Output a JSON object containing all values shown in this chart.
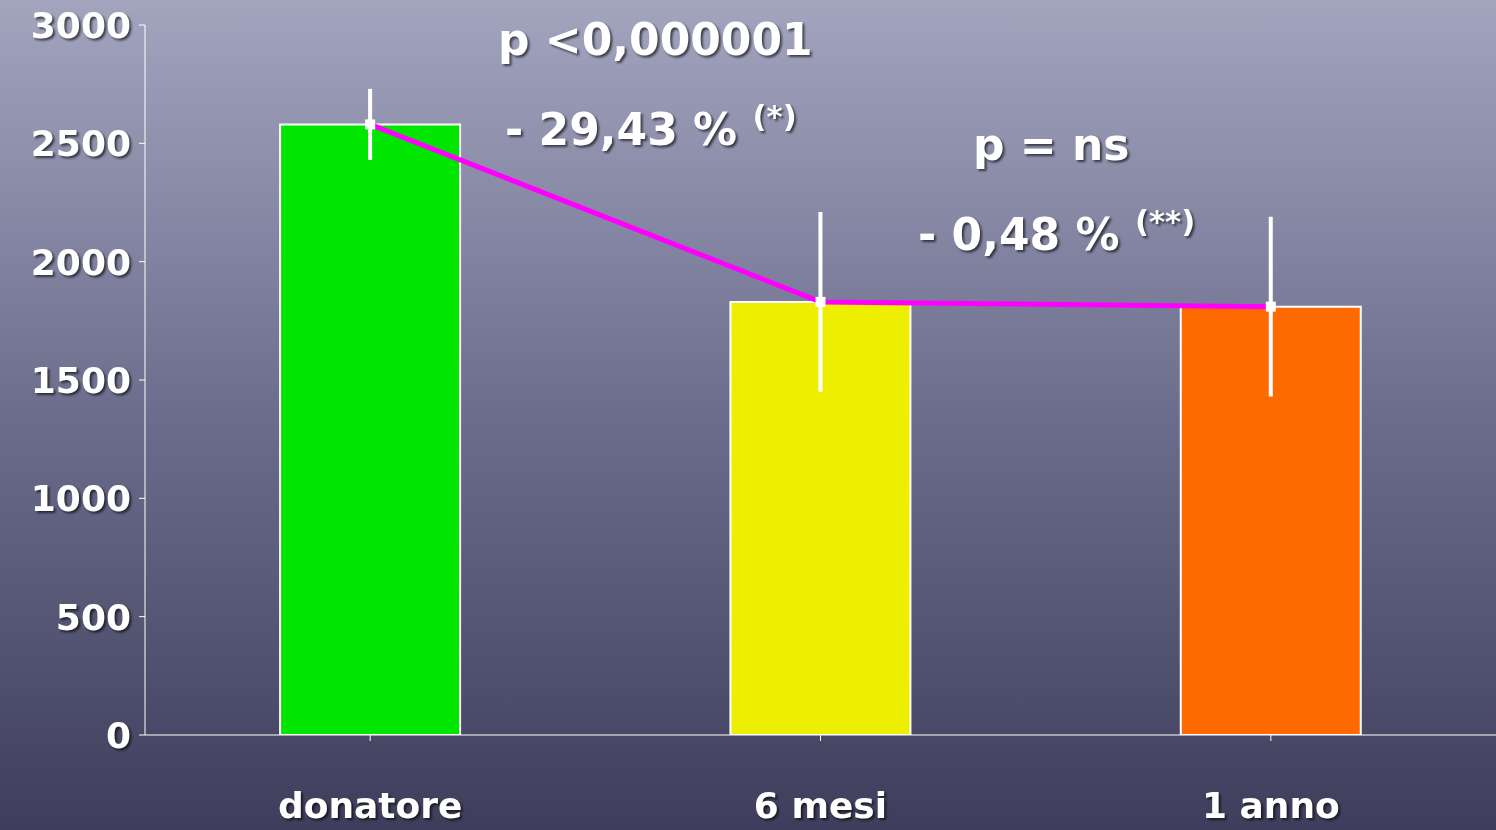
{
  "chart_data": {
    "type": "bar",
    "categories": [
      "donatore",
      "6 mesi",
      "1 anno"
    ],
    "series": [
      {
        "colors": [
          "#00e600",
          "#eeee00",
          "#ff6a00"
        ],
        "values": [
          2580,
          1830,
          1810
        ],
        "errors": [
          150,
          380,
          380
        ]
      },
      {
        "type": "line",
        "color": "#ff00ff",
        "values": [
          2580,
          1830,
          1810
        ]
      }
    ],
    "ylim": [
      0,
      3000
    ],
    "yticks": [
      0,
      500,
      1000,
      1500,
      2000,
      2500,
      3000
    ],
    "grid": false,
    "legend": false,
    "marker": "square",
    "annotations": [
      "p <0,000001",
      "- 29,43 % $^{(*)}$",
      "p = ns",
      "- 0,48 % $^{(**)}$"
    ]
  }
}
